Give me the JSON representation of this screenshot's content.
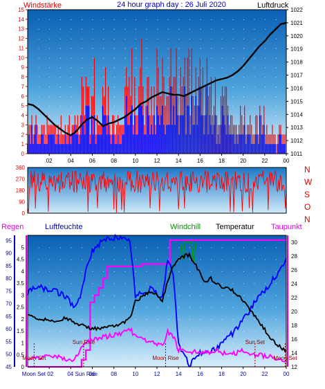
{
  "chart_data": [
    {
      "type": "line",
      "title": "24 hour graph day : 26 Juli 2020",
      "left_label": "Windstärke",
      "right_label": "Luftdruck",
      "x_ticks": [
        "02",
        "04",
        "06",
        "08",
        "10",
        "12",
        "14",
        "16",
        "18",
        "20",
        "22",
        "00"
      ],
      "y_left_ticks": [
        "0",
        "1",
        "2",
        "3",
        "4",
        "5",
        "6",
        "7",
        "8",
        "9",
        "10",
        "11",
        "12",
        "13",
        "14",
        "15"
      ],
      "y_right_ticks": [
        "1011",
        "1012",
        "1013",
        "1014",
        "1015",
        "1016",
        "1017",
        "1018",
        "1019",
        "1020",
        "1021",
        "1022"
      ],
      "y_left_range": [
        0,
        15
      ],
      "y_right_range": [
        1011,
        1022
      ],
      "series": [
        {
          "name": "Windstärke",
          "color": "#ff0000",
          "kind": "gust-bars"
        },
        {
          "name": "Windstärke",
          "color": "#0000ff",
          "kind": "mean-bars"
        },
        {
          "name": "Luftdruck",
          "color": "#000000",
          "kind": "line",
          "x": [
            0,
            0.5,
            1,
            1.5,
            2,
            2.5,
            3,
            3.5,
            4,
            4.5,
            5,
            5.5,
            6,
            6.5,
            7,
            7.5,
            8,
            8.5,
            9,
            9.5,
            10,
            10.5,
            11,
            11.5,
            12,
            12.5,
            13,
            13.5,
            14,
            14.5,
            15,
            15.5,
            16,
            16.5,
            17,
            17.5,
            18,
            18.5,
            19,
            19.5,
            20,
            20.5,
            21,
            21.5,
            22,
            22.5,
            23,
            23.5,
            24
          ],
          "y": [
            1014.8,
            1014.7,
            1014.4,
            1014.0,
            1013.6,
            1013.2,
            1012.9,
            1012.6,
            1012.4,
            1012.7,
            1013.2,
            1013.6,
            1013.8,
            1013.5,
            1013.1,
            1013.3,
            1013.4,
            1013.6,
            1013.8,
            1014.1,
            1014.4,
            1014.8,
            1015.0,
            1015.3,
            1015.5,
            1015.7,
            1015.6,
            1015.5,
            1015.5,
            1015.4,
            1015.6,
            1015.8,
            1016.0,
            1016.2,
            1016.4,
            1016.6,
            1016.7,
            1016.8,
            1017.0,
            1017.3,
            1017.7,
            1018.2,
            1018.7,
            1019.2,
            1019.6,
            1020.1,
            1020.5,
            1020.9,
            1021.0
          ]
        }
      ]
    },
    {
      "type": "line",
      "title": "",
      "y_ticks": [
        "0",
        "90",
        "180",
        "270",
        "360"
      ],
      "y_range": [
        0,
        360
      ],
      "compass": [
        "N",
        "W",
        "S",
        "O",
        "N"
      ],
      "series": [
        {
          "name": "Windrichtung",
          "color": "#ff0000",
          "kind": "noisy-direction"
        }
      ]
    },
    {
      "type": "line",
      "title": "",
      "labels": {
        "regen": "Regen",
        "luftfeuchte": "Luftfeuchte",
        "windchill": "Windchill",
        "temperatur": "Temperatur",
        "taupunkt": "Taupunkt"
      },
      "x_ticks": [
        "02",
        "04",
        "06",
        "08",
        "10",
        "12",
        "14",
        "16",
        "18",
        "20",
        "22",
        "00"
      ],
      "x_tick_prefix_left": "Moon Set",
      "x_tick_04_suffix": "Sun Rise",
      "rain_ticks": [
        "0",
        "0.5",
        "1",
        "1.5",
        "2",
        "2.5",
        "3",
        "3.5",
        "4",
        "4.5",
        "5"
      ],
      "rain_range": [
        0,
        5.5
      ],
      "humidity_ticks": [
        "45",
        "50",
        "55",
        "60",
        "65",
        "70",
        "75",
        "80",
        "85",
        "90",
        "95"
      ],
      "humidity_range": [
        45,
        97
      ],
      "temperature_ticks": [
        "12",
        "14",
        "16",
        "18",
        "20",
        "22",
        "24",
        "26",
        "28",
        "30"
      ],
      "temperature_range": [
        12,
        31
      ],
      "events": [
        {
          "label": "Moon Set",
          "hour": 0.6,
          "color": "#a00000"
        },
        {
          "label": "Sun Rise",
          "hour": 5.2,
          "color": "#a00000"
        },
        {
          "label": "Moon Rise",
          "hour": 12.8,
          "color": "#a00000"
        },
        {
          "label": "Sun Set",
          "hour": 21.1,
          "color": "#a00000"
        },
        {
          "label": "Moon Set",
          "hour": 23.9,
          "color": "#a00000"
        }
      ],
      "series": [
        {
          "name": "Regen",
          "color": "#ff00ff",
          "axis": "rain",
          "x": [
            0,
            4.8,
            5,
            5.4,
            5.8,
            6.2,
            6.6,
            7,
            7.4,
            10.2,
            10.6,
            13,
            13.2,
            24
          ],
          "y": [
            0,
            0,
            0.3,
            0.7,
            2.7,
            3.0,
            3.3,
            3.7,
            4.2,
            4.2,
            4.3,
            4.3,
            5.3,
            5.3
          ]
        },
        {
          "name": "Luftfeuchte",
          "color": "#0000ff",
          "axis": "humidity",
          "x": [
            0,
            0.5,
            1,
            1.5,
            2,
            2.5,
            3,
            3.5,
            4,
            4.5,
            5,
            5.5,
            6,
            6.5,
            7,
            7.5,
            8,
            8.5,
            9,
            9.5,
            10,
            10.5,
            11,
            11.5,
            12,
            12.5,
            13,
            13.5,
            14,
            14.5,
            15,
            15.5,
            16,
            16.5,
            17,
            17.5,
            18,
            18.5,
            19,
            19.5,
            20,
            20.5,
            21,
            21.5,
            22,
            22.5,
            23,
            23.5,
            24
          ],
          "y": [
            74,
            76,
            77,
            76,
            75,
            75,
            74,
            73,
            70,
            69,
            74,
            85,
            91,
            93,
            95,
            96,
            96,
            96,
            96,
            95,
            73,
            74,
            75,
            76,
            74,
            72,
            88,
            82,
            54,
            50,
            46,
            48,
            51,
            50,
            51,
            52,
            55,
            57,
            58,
            61,
            64,
            66,
            70,
            73,
            75,
            78,
            81,
            84,
            88
          ]
        },
        {
          "name": "Windchill",
          "color": "#00a000",
          "axis": "temperature",
          "x": [
            14.2,
            14.4,
            14.6,
            15.2,
            15.4,
            15.6
          ],
          "y": [
            30,
            27.5,
            30,
            30,
            27.0,
            30
          ]
        },
        {
          "name": "Temperatur",
          "color": "#000000",
          "axis": "temperature",
          "x": [
            0,
            0.5,
            1,
            1.5,
            2,
            2.5,
            3,
            3.5,
            4,
            4.5,
            5,
            5.5,
            6,
            6.5,
            7,
            7.5,
            8,
            8.5,
            9,
            9.5,
            10,
            10.5,
            11,
            11.5,
            12,
            12.5,
            13,
            13.5,
            14,
            14.5,
            15,
            15.5,
            16,
            16.5,
            17,
            17.5,
            18,
            18.5,
            19,
            19.5,
            20,
            20.5,
            21,
            21.5,
            22,
            22.5,
            23,
            23.5,
            24
          ],
          "y": [
            19.5,
            19.2,
            19.0,
            18.9,
            18.8,
            18.7,
            18.8,
            19.0,
            18.7,
            18.4,
            18.0,
            17.7,
            17.6,
            17.5,
            17.6,
            17.7,
            17.9,
            18.2,
            18.5,
            19.0,
            21.5,
            22.0,
            22.5,
            22.8,
            22.3,
            21.5,
            24.5,
            26.5,
            27.5,
            28.0,
            28.2,
            27.0,
            25.5,
            24.3,
            24.8,
            24.0,
            23.5,
            23.7,
            23.0,
            22.3,
            21.5,
            20.5,
            19.5,
            18.5,
            17.4,
            16.3,
            15.4,
            14.8,
            14.4
          ]
        },
        {
          "name": "Taupunkt",
          "color": "#ff00ff",
          "axis": "temperature",
          "x": [
            0,
            0.5,
            1,
            1.5,
            2,
            2.5,
            3,
            3.5,
            4,
            4.5,
            5,
            5.5,
            6,
            6.5,
            7,
            7.5,
            8,
            8.5,
            9,
            9.5,
            10,
            10.5,
            11,
            11.5,
            12,
            12.5,
            13,
            13.5,
            14,
            14.5,
            15,
            15.5,
            16,
            16.5,
            17,
            17.5,
            18,
            18.5,
            19,
            19.5,
            20,
            20.5,
            21,
            21.5,
            22,
            22.5,
            23,
            23.5,
            24
          ],
          "y": [
            13.2,
            13.4,
            13.4,
            13.3,
            13.6,
            13.5,
            13.3,
            13.2,
            12.9,
            13.6,
            14.6,
            15.5,
            15.9,
            16.1,
            16.3,
            16.4,
            16.6,
            16.8,
            17.1,
            17.5,
            16.4,
            16.0,
            15.8,
            15.5,
            15.2,
            15.0,
            17.0,
            16.5,
            14.5,
            14.3,
            13.8,
            14.2,
            14.0,
            14.2,
            14.1,
            14.5,
            13.9,
            14.0,
            13.8,
            14.1,
            14.3,
            14.0,
            13.8,
            13.7,
            13.6,
            13.6,
            13.2,
            13.1,
            13.0
          ]
        }
      ]
    }
  ]
}
